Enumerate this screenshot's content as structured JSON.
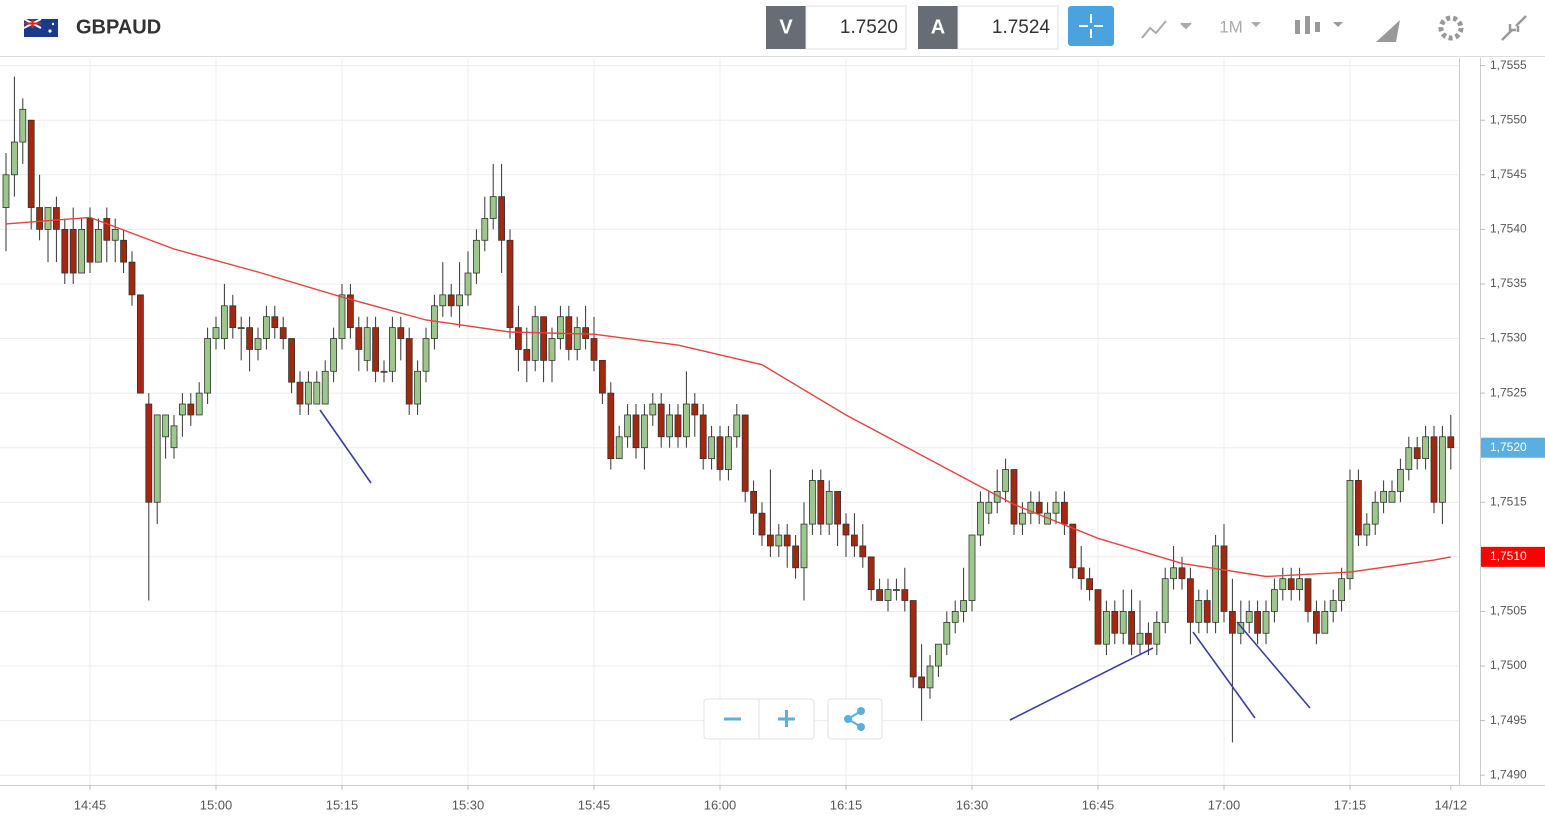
{
  "header": {
    "symbol": "GBPAUD",
    "bid": {
      "label": "V",
      "value": "1.7520"
    },
    "ask": {
      "label": "A",
      "value": "1.7524"
    },
    "timeframe": "1M"
  },
  "chart_data": {
    "type": "candlestick",
    "up_color": "#9cc98b",
    "down_color": "#a3280f",
    "x": [
      "14:35",
      "14:36",
      "14:37",
      "14:38",
      "14:39",
      "14:40",
      "14:41",
      "14:42",
      "14:43",
      "14:44",
      "14:45",
      "14:46",
      "14:47",
      "14:48",
      "14:49",
      "14:50",
      "14:51",
      "14:52",
      "14:53",
      "14:54",
      "14:55",
      "14:56",
      "14:57",
      "14:58",
      "14:59",
      "15:00",
      "15:01",
      "15:02",
      "15:03",
      "15:04",
      "15:05",
      "15:06",
      "15:07",
      "15:08",
      "15:09",
      "15:10",
      "15:11",
      "15:12",
      "15:13",
      "15:14",
      "15:15",
      "15:16",
      "15:17",
      "15:18",
      "15:19",
      "15:20",
      "15:21",
      "15:22",
      "15:23",
      "15:24",
      "15:25",
      "15:26",
      "15:27",
      "15:28",
      "15:29",
      "15:30",
      "15:31",
      "15:32",
      "15:33",
      "15:34",
      "15:35",
      "15:36",
      "15:37",
      "15:38",
      "15:39",
      "15:40",
      "15:41",
      "15:42",
      "15:43",
      "15:44",
      "15:45",
      "15:46",
      "15:47",
      "15:48",
      "15:49",
      "15:50",
      "15:51",
      "15:52",
      "15:53",
      "15:54",
      "15:55",
      "15:56",
      "15:57",
      "15:58",
      "15:59",
      "16:00",
      "16:01",
      "16:02",
      "16:03",
      "16:04",
      "16:05",
      "16:06",
      "16:07",
      "16:08",
      "16:09",
      "16:10",
      "16:11",
      "16:12",
      "16:13",
      "16:14",
      "16:15",
      "16:16",
      "16:17",
      "16:18",
      "16:19",
      "16:20",
      "16:21",
      "16:22",
      "16:23",
      "16:24",
      "16:25",
      "16:26",
      "16:27",
      "16:28",
      "16:29",
      "16:30",
      "16:31",
      "16:32",
      "16:33",
      "16:34",
      "16:35",
      "16:36",
      "16:37",
      "16:38",
      "16:39",
      "16:40",
      "16:41",
      "16:42",
      "16:43",
      "16:44",
      "16:45",
      "16:46",
      "16:47",
      "16:48",
      "16:49",
      "16:50",
      "16:51",
      "16:52",
      "16:53",
      "16:54",
      "16:55",
      "16:56",
      "16:57",
      "16:58",
      "16:59",
      "17:00",
      "17:01",
      "17:02",
      "17:03",
      "17:04",
      "17:05",
      "17:06",
      "17:07",
      "17:08",
      "17:09",
      "17:10",
      "17:11",
      "17:12",
      "17:13",
      "17:14",
      "17:15",
      "17:16",
      "17:17",
      "17:18",
      "17:19",
      "17:20",
      "17:21",
      "17:22",
      "17:23",
      "17:24",
      "17:25",
      "17:26",
      "17:27"
    ],
    "candles": [
      [
        1.7542,
        1.7547,
        1.7538,
        1.7545
      ],
      [
        1.7545,
        1.7554,
        1.7543,
        1.7548
      ],
      [
        1.7548,
        1.7552,
        1.7546,
        1.7551
      ],
      [
        1.755,
        1.755,
        1.754,
        1.7542
      ],
      [
        1.7542,
        1.7545,
        1.7539,
        1.754
      ],
      [
        1.754,
        1.7542,
        1.7537,
        1.7542
      ],
      [
        1.7542,
        1.7543,
        1.7537,
        1.754
      ],
      [
        1.754,
        1.7541,
        1.7535,
        1.7536
      ],
      [
        1.754,
        1.7542,
        1.7535,
        1.7536
      ],
      [
        1.7536,
        1.7541,
        1.7536,
        1.754
      ],
      [
        1.7541,
        1.7542,
        1.7536,
        1.7537
      ],
      [
        1.7537,
        1.7541,
        1.7537,
        1.754
      ],
      [
        1.7541,
        1.7542,
        1.7537,
        1.7539
      ],
      [
        1.7539,
        1.7541,
        1.7537,
        1.754
      ],
      [
        1.7539,
        1.754,
        1.7536,
        1.7537
      ],
      [
        1.7537,
        1.7538,
        1.7533,
        1.7534
      ],
      [
        1.7534,
        1.7534,
        1.7525,
        1.7525
      ],
      [
        1.7524,
        1.7525,
        1.7506,
        1.7515
      ],
      [
        1.7515,
        1.7523,
        1.7513,
        1.7523
      ],
      [
        1.7521,
        1.7523,
        1.7519,
        1.7523
      ],
      [
        1.752,
        1.7523,
        1.7519,
        1.7522
      ],
      [
        1.7523,
        1.7525,
        1.7521,
        1.7524
      ],
      [
        1.7524,
        1.7525,
        1.7522,
        1.7523
      ],
      [
        1.7523,
        1.7526,
        1.7523,
        1.7525
      ],
      [
        1.7525,
        1.7531,
        1.7524,
        1.753
      ],
      [
        1.753,
        1.7532,
        1.7529,
        1.7531
      ],
      [
        1.753,
        1.7535,
        1.7529,
        1.7533
      ],
      [
        1.7533,
        1.7534,
        1.753,
        1.7531
      ],
      [
        1.7531,
        1.7532,
        1.7528,
        1.7531
      ],
      [
        1.7531,
        1.7532,
        1.7527,
        1.7529
      ],
      [
        1.7529,
        1.7531,
        1.7528,
        1.753
      ],
      [
        1.753,
        1.7533,
        1.7529,
        1.7532
      ],
      [
        1.7532,
        1.7533,
        1.753,
        1.7531
      ],
      [
        1.7531,
        1.7532,
        1.7529,
        1.753
      ],
      [
        1.753,
        1.753,
        1.7525,
        1.7526
      ],
      [
        1.7526,
        1.7527,
        1.7523,
        1.7524
      ],
      [
        1.7524,
        1.7527,
        1.7523,
        1.7526
      ],
      [
        1.7524,
        1.7527,
        1.7524,
        1.7526
      ],
      [
        1.7524,
        1.7528,
        1.7524,
        1.7527
      ],
      [
        1.7527,
        1.7531,
        1.7526,
        1.753
      ],
      [
        1.753,
        1.7535,
        1.7529,
        1.7534
      ],
      [
        1.7534,
        1.7535,
        1.753,
        1.7531
      ],
      [
        1.7531,
        1.7532,
        1.7527,
        1.7529
      ],
      [
        1.7528,
        1.7532,
        1.7527,
        1.7531
      ],
      [
        1.7531,
        1.7532,
        1.7526,
        1.7527
      ],
      [
        1.7527,
        1.7528,
        1.7526,
        1.7527
      ],
      [
        1.7527,
        1.7532,
        1.7526,
        1.7531
      ],
      [
        1.7531,
        1.7532,
        1.7528,
        1.753
      ],
      [
        1.753,
        1.7531,
        1.7523,
        1.7524
      ],
      [
        1.7524,
        1.7528,
        1.7523,
        1.7527
      ],
      [
        1.7527,
        1.7531,
        1.7526,
        1.753
      ],
      [
        1.753,
        1.7534,
        1.7529,
        1.7533
      ],
      [
        1.7533,
        1.7537,
        1.7532,
        1.7534
      ],
      [
        1.7534,
        1.7535,
        1.7532,
        1.7533
      ],
      [
        1.7533,
        1.7537,
        1.7531,
        1.7534
      ],
      [
        1.7534,
        1.7538,
        1.7533,
        1.7536
      ],
      [
        1.7536,
        1.754,
        1.7535,
        1.7539
      ],
      [
        1.7539,
        1.7543,
        1.7538,
        1.7541
      ],
      [
        1.7541,
        1.7546,
        1.754,
        1.7543
      ],
      [
        1.7543,
        1.7546,
        1.7536,
        1.7539
      ],
      [
        1.7539,
        1.754,
        1.753,
        1.7531
      ],
      [
        1.7531,
        1.7533,
        1.7527,
        1.7529
      ],
      [
        1.7529,
        1.7531,
        1.7526,
        1.7528
      ],
      [
        1.7528,
        1.7533,
        1.7527,
        1.7532
      ],
      [
        1.7532,
        1.7532,
        1.7526,
        1.7528
      ],
      [
        1.7528,
        1.7531,
        1.7526,
        1.753
      ],
      [
        1.753,
        1.7533,
        1.7529,
        1.7532
      ],
      [
        1.7532,
        1.7533,
        1.7528,
        1.7529
      ],
      [
        1.7529,
        1.7532,
        1.7528,
        1.7531
      ],
      [
        1.7531,
        1.7533,
        1.7529,
        1.753
      ],
      [
        1.753,
        1.7532,
        1.7527,
        1.7528
      ],
      [
        1.7528,
        1.7528,
        1.7524,
        1.7525
      ],
      [
        1.7525,
        1.7526,
        1.7518,
        1.7519
      ],
      [
        1.7519,
        1.7522,
        1.7519,
        1.7521
      ],
      [
        1.7521,
        1.7524,
        1.752,
        1.7523
      ],
      [
        1.7523,
        1.7524,
        1.7519,
        1.752
      ],
      [
        1.752,
        1.7524,
        1.7518,
        1.7523
      ],
      [
        1.7523,
        1.7525,
        1.7522,
        1.7524
      ],
      [
        1.7524,
        1.7525,
        1.752,
        1.7521
      ],
      [
        1.7521,
        1.7524,
        1.752,
        1.7523
      ],
      [
        1.7523,
        1.7524,
        1.752,
        1.7521
      ],
      [
        1.7521,
        1.7527,
        1.752,
        1.7524
      ],
      [
        1.7524,
        1.7525,
        1.7521,
        1.7523
      ],
      [
        1.7523,
        1.7524,
        1.7518,
        1.7519
      ],
      [
        1.7519,
        1.7522,
        1.7518,
        1.7521
      ],
      [
        1.7521,
        1.7522,
        1.7517,
        1.7518
      ],
      [
        1.7518,
        1.7522,
        1.7517,
        1.7521
      ],
      [
        1.7521,
        1.7524,
        1.752,
        1.7523
      ],
      [
        1.7523,
        1.7523,
        1.7515,
        1.7516
      ],
      [
        1.7516,
        1.7517,
        1.7512,
        1.7514
      ],
      [
        1.7514,
        1.7515,
        1.7511,
        1.7512
      ],
      [
        1.7512,
        1.7518,
        1.751,
        1.7511
      ],
      [
        1.7511,
        1.7513,
        1.751,
        1.7512
      ],
      [
        1.7512,
        1.7513,
        1.7509,
        1.7511
      ],
      [
        1.7511,
        1.7512,
        1.7508,
        1.7509
      ],
      [
        1.7509,
        1.7515,
        1.7506,
        1.7513
      ],
      [
        1.7513,
        1.7518,
        1.7512,
        1.7517
      ],
      [
        1.7517,
        1.7518,
        1.7512,
        1.7513
      ],
      [
        1.7513,
        1.7517,
        1.7512,
        1.7516
      ],
      [
        1.7516,
        1.7516,
        1.7511,
        1.7513
      ],
      [
        1.7513,
        1.7514,
        1.751,
        1.7512
      ],
      [
        1.7512,
        1.7514,
        1.751,
        1.7511
      ],
      [
        1.7511,
        1.7513,
        1.7509,
        1.751
      ],
      [
        1.751,
        1.751,
        1.7506,
        1.7507
      ],
      [
        1.7507,
        1.7508,
        1.7506,
        1.7506
      ],
      [
        1.7506,
        1.7508,
        1.7505,
        1.7507
      ],
      [
        1.7507,
        1.7508,
        1.7506,
        1.7507
      ],
      [
        1.7507,
        1.7509,
        1.7505,
        1.7506
      ],
      [
        1.7506,
        1.7506,
        1.7498,
        1.7499
      ],
      [
        1.7499,
        1.7502,
        1.7495,
        1.7498
      ],
      [
        1.7498,
        1.7501,
        1.7497,
        1.75
      ],
      [
        1.75,
        1.7502,
        1.7499,
        1.7502
      ],
      [
        1.7502,
        1.7505,
        1.7501,
        1.7504
      ],
      [
        1.7504,
        1.7506,
        1.7503,
        1.7505
      ],
      [
        1.7505,
        1.7509,
        1.7504,
        1.7506
      ],
      [
        1.7506,
        1.7512,
        1.7505,
        1.7512
      ],
      [
        1.7512,
        1.7516,
        1.7511,
        1.7515
      ],
      [
        1.7514,
        1.7516,
        1.7513,
        1.7515
      ],
      [
        1.7515,
        1.7518,
        1.7514,
        1.7516
      ],
      [
        1.7516,
        1.7519,
        1.7515,
        1.7518
      ],
      [
        1.7518,
        1.7518,
        1.7512,
        1.7513
      ],
      [
        1.7513,
        1.7515,
        1.7512,
        1.7514
      ],
      [
        1.7514,
        1.7516,
        1.7513,
        1.7515
      ],
      [
        1.7515,
        1.7516,
        1.7513,
        1.7514
      ],
      [
        1.7513,
        1.7515,
        1.7513,
        1.7514
      ],
      [
        1.7514,
        1.7516,
        1.7513,
        1.7515
      ],
      [
        1.7515,
        1.7516,
        1.7512,
        1.7513
      ],
      [
        1.7513,
        1.7513,
        1.7508,
        1.7509
      ],
      [
        1.7509,
        1.7511,
        1.7507,
        1.7508
      ],
      [
        1.7508,
        1.7509,
        1.7506,
        1.7507
      ],
      [
        1.7507,
        1.7507,
        1.7502,
        1.7502
      ],
      [
        1.7502,
        1.7506,
        1.7501,
        1.7505
      ],
      [
        1.7505,
        1.7506,
        1.7502,
        1.7503
      ],
      [
        1.7503,
        1.7507,
        1.7502,
        1.7505
      ],
      [
        1.7505,
        1.7507,
        1.7501,
        1.7502
      ],
      [
        1.7502,
        1.7506,
        1.7501,
        1.7503
      ],
      [
        1.7503,
        1.7504,
        1.7501,
        1.7502
      ],
      [
        1.7502,
        1.7505,
        1.7501,
        1.7504
      ],
      [
        1.7504,
        1.7509,
        1.7503,
        1.7508
      ],
      [
        1.7508,
        1.7511,
        1.7507,
        1.7509
      ],
      [
        1.7509,
        1.751,
        1.7507,
        1.7508
      ],
      [
        1.7508,
        1.7509,
        1.7502,
        1.7504
      ],
      [
        1.7504,
        1.7507,
        1.7503,
        1.7506
      ],
      [
        1.7506,
        1.7507,
        1.7503,
        1.7504
      ],
      [
        1.7504,
        1.7512,
        1.7503,
        1.7511
      ],
      [
        1.7511,
        1.7513,
        1.7504,
        1.7505
      ],
      [
        1.7505,
        1.7508,
        1.7493,
        1.7503
      ],
      [
        1.7503,
        1.7506,
        1.7502,
        1.7504
      ],
      [
        1.7504,
        1.7506,
        1.7503,
        1.7505
      ],
      [
        1.7505,
        1.7506,
        1.7502,
        1.7503
      ],
      [
        1.7503,
        1.7506,
        1.7502,
        1.7505
      ],
      [
        1.7505,
        1.7508,
        1.7504,
        1.7507
      ],
      [
        1.7507,
        1.7509,
        1.7506,
        1.7508
      ],
      [
        1.7508,
        1.7509,
        1.7506,
        1.7507
      ],
      [
        1.7507,
        1.7509,
        1.7506,
        1.7508
      ],
      [
        1.7508,
        1.7508,
        1.7504,
        1.7505
      ],
      [
        1.7505,
        1.7506,
        1.7502,
        1.7503
      ],
      [
        1.7503,
        1.7506,
        1.7503,
        1.7505
      ],
      [
        1.7505,
        1.7507,
        1.7504,
        1.7506
      ],
      [
        1.7506,
        1.7509,
        1.7505,
        1.7508
      ],
      [
        1.7508,
        1.7518,
        1.7507,
        1.7517
      ],
      [
        1.7517,
        1.7518,
        1.7511,
        1.7512
      ],
      [
        1.7512,
        1.7514,
        1.7511,
        1.7513
      ],
      [
        1.7513,
        1.7516,
        1.7512,
        1.7515
      ],
      [
        1.7515,
        1.7517,
        1.7514,
        1.7516
      ],
      [
        1.7515,
        1.7517,
        1.7515,
        1.7516
      ],
      [
        1.7516,
        1.7519,
        1.7515,
        1.7518
      ],
      [
        1.7518,
        1.7521,
        1.7517,
        1.752
      ],
      [
        1.752,
        1.7521,
        1.7518,
        1.7519
      ],
      [
        1.7519,
        1.7522,
        1.7518,
        1.7521
      ],
      [
        1.7521,
        1.7522,
        1.7514,
        1.7515
      ],
      [
        1.7515,
        1.7522,
        1.7513,
        1.7521
      ],
      [
        1.7521,
        1.7523,
        1.7518,
        1.752
      ]
    ],
    "moving_average": {
      "color": "#e8423f",
      "x": [
        "14:35",
        "14:45",
        "14:55",
        "15:05",
        "15:15",
        "15:25",
        "15:35",
        "15:45",
        "15:55",
        "16:05",
        "16:15",
        "16:25",
        "16:35",
        "16:45",
        "16:55",
        "17:05",
        "17:15",
        "17:25",
        "17:27"
      ],
      "values": [
        1.75405,
        1.75411,
        1.75382,
        1.75361,
        1.75338,
        1.75317,
        1.75306,
        1.75304,
        1.75294,
        1.75276,
        1.7523,
        1.75189,
        1.75148,
        1.75117,
        1.75094,
        1.75082,
        1.75086,
        1.75097,
        1.751
      ]
    },
    "ylim": [
      1.74891,
      1.75557
    ],
    "yticks": [
      {
        "value": 1.749,
        "label": "1,7490"
      },
      {
        "value": 1.7495,
        "label": "1,7495"
      },
      {
        "value": 1.75,
        "label": "1,7500"
      },
      {
        "value": 1.7505,
        "label": "1,7505"
      },
      {
        "value": 1.751,
        "label": "1,7510"
      },
      {
        "value": 1.7515,
        "label": "1,7515"
      },
      {
        "value": 1.752,
        "label": "1,7520"
      },
      {
        "value": 1.7525,
        "label": "1,7525"
      },
      {
        "value": 1.753,
        "label": "1,7530"
      },
      {
        "value": 1.7535,
        "label": "1,7535"
      },
      {
        "value": 1.754,
        "label": "1,7540"
      },
      {
        "value": 1.7545,
        "label": "1,7545"
      },
      {
        "value": 1.755,
        "label": "1,7550"
      },
      {
        "value": 1.7555,
        "label": "1,7555"
      }
    ],
    "xticks": [
      "14:45",
      "15:00",
      "15:15",
      "15:30",
      "15:45",
      "16:00",
      "16:15",
      "16:30",
      "16:45",
      "17:00",
      "17:15",
      {
        "value": "17:27",
        "label": "14/12"
      }
    ],
    "price_labels": [
      {
        "value": 1.752,
        "label": "1,7520",
        "color": "#5aaee0"
      },
      {
        "value": 1.751,
        "label": "1,7510",
        "color": "#ff0000"
      }
    ],
    "grid": true
  }
}
